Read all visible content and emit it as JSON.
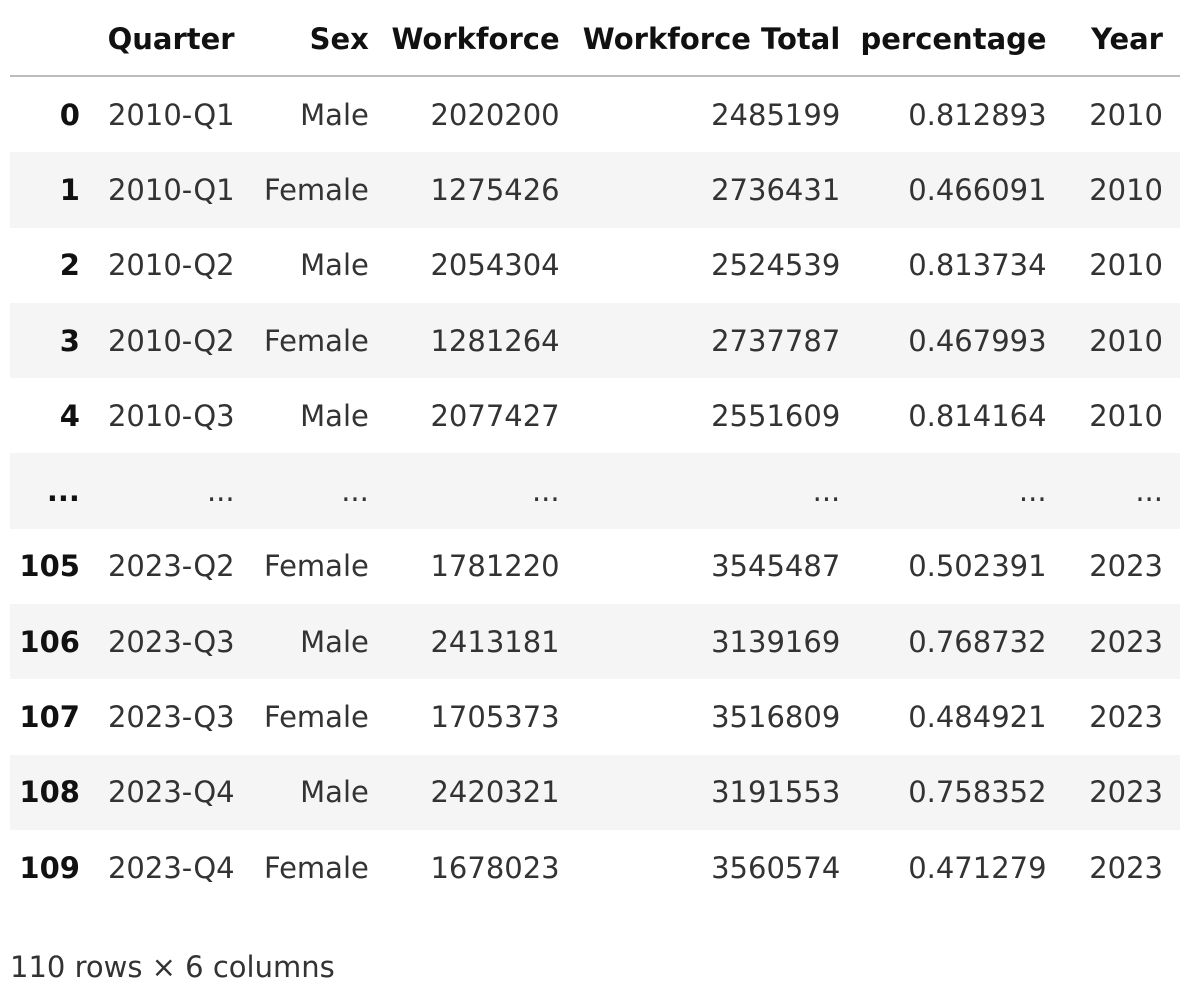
{
  "dataframe": {
    "columns": [
      "",
      "Quarter",
      "Sex",
      "Workforce",
      "Workforce Total",
      "percentage",
      "Year"
    ],
    "rows": [
      {
        "index": "0",
        "cells": [
          "2010-Q1",
          "Male",
          "2020200",
          "2485199",
          "0.812893",
          "2010"
        ]
      },
      {
        "index": "1",
        "cells": [
          "2010-Q1",
          "Female",
          "1275426",
          "2736431",
          "0.466091",
          "2010"
        ]
      },
      {
        "index": "2",
        "cells": [
          "2010-Q2",
          "Male",
          "2054304",
          "2524539",
          "0.813734",
          "2010"
        ]
      },
      {
        "index": "3",
        "cells": [
          "2010-Q2",
          "Female",
          "1281264",
          "2737787",
          "0.467993",
          "2010"
        ]
      },
      {
        "index": "4",
        "cells": [
          "2010-Q3",
          "Male",
          "2077427",
          "2551609",
          "0.814164",
          "2010"
        ]
      },
      {
        "index": "...",
        "cells": [
          "...",
          "...",
          "...",
          "...",
          "...",
          "..."
        ]
      },
      {
        "index": "105",
        "cells": [
          "2023-Q2",
          "Female",
          "1781220",
          "3545487",
          "0.502391",
          "2023"
        ]
      },
      {
        "index": "106",
        "cells": [
          "2023-Q3",
          "Male",
          "2413181",
          "3139169",
          "0.768732",
          "2023"
        ]
      },
      {
        "index": "107",
        "cells": [
          "2023-Q3",
          "Female",
          "1705373",
          "3516809",
          "0.484921",
          "2023"
        ]
      },
      {
        "index": "108",
        "cells": [
          "2023-Q4",
          "Male",
          "2420321",
          "3191553",
          "0.758352",
          "2023"
        ]
      },
      {
        "index": "109",
        "cells": [
          "2023-Q4",
          "Female",
          "1678023",
          "3560574",
          "0.471279",
          "2023"
        ]
      }
    ],
    "shape_text": "110 rows × 6 columns"
  }
}
